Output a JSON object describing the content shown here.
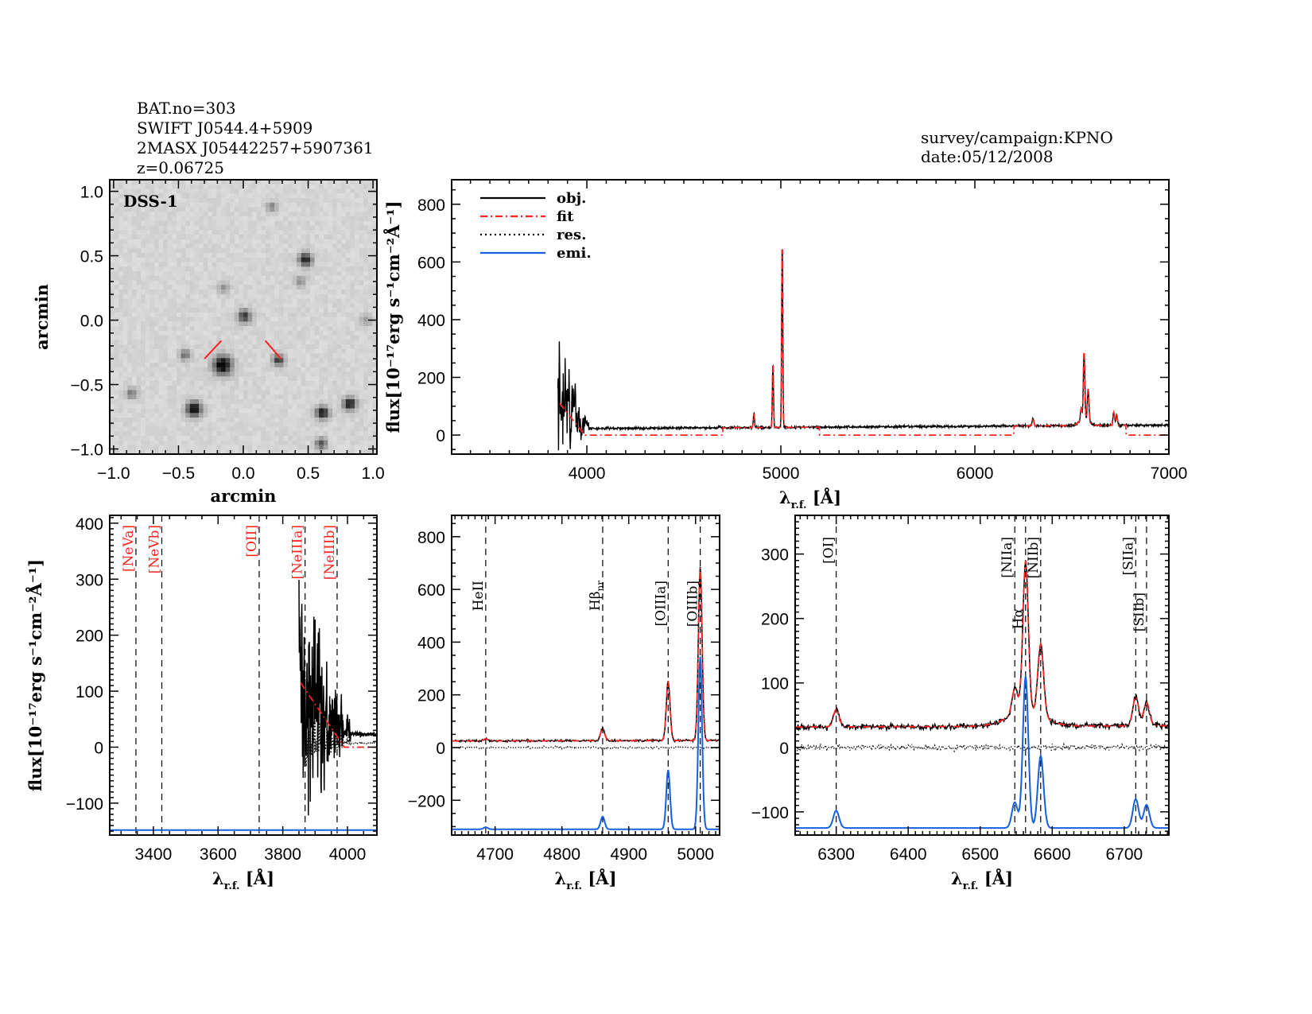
{
  "header": {
    "left_lines": [
      "BAT.no=303",
      "SWIFT J0544.4+5909",
      "2MASX J05442257+5907361",
      "z=0.06725"
    ],
    "right_lines": [
      "survey/campaign:KPNO",
      "date:05/12/2008"
    ]
  },
  "colors": {
    "obj": "#000000",
    "fit": "#ff2020",
    "res": "#000000",
    "emi": "#1560e0",
    "red_label": "#ff2020"
  },
  "chart_data": [
    {
      "type": "image",
      "id": "dss",
      "inset_label": "DSS-1",
      "xlabel": "arcmin",
      "ylabel": "arcmin",
      "xlim": [
        -1.03,
        1.03
      ],
      "ylim": [
        -1.04,
        1.09
      ],
      "xticks": [
        "-1.0",
        "-0.5",
        "0.0",
        "0.5",
        "1.0"
      ],
      "yticks": [
        "-1.0",
        "-0.5",
        "0.0",
        "0.5",
        "1.0"
      ],
      "sources": [
        {
          "x": -0.16,
          "y": -0.35,
          "b": 1.0,
          "r": 0.05
        },
        {
          "x": 0.01,
          "y": 0.03,
          "b": 0.7,
          "r": 0.035
        },
        {
          "x": 0.48,
          "y": 0.47,
          "b": 0.85,
          "r": 0.035
        },
        {
          "x": 0.27,
          "y": -0.31,
          "b": 0.7,
          "r": 0.03
        },
        {
          "x": -0.38,
          "y": -0.69,
          "b": 0.95,
          "r": 0.04
        },
        {
          "x": 0.61,
          "y": -0.72,
          "b": 0.85,
          "r": 0.035
        },
        {
          "x": 0.82,
          "y": -0.65,
          "b": 0.85,
          "r": 0.035
        },
        {
          "x": 0.6,
          "y": -0.96,
          "b": 0.6,
          "r": 0.03
        },
        {
          "x": -0.45,
          "y": -0.27,
          "b": 0.45,
          "r": 0.03
        },
        {
          "x": -0.86,
          "y": -0.57,
          "b": 0.4,
          "r": 0.03
        },
        {
          "x": 0.22,
          "y": 0.88,
          "b": 0.35,
          "r": 0.03
        },
        {
          "x": 0.44,
          "y": 0.3,
          "b": 0.35,
          "r": 0.03
        },
        {
          "x": -0.15,
          "y": 0.25,
          "b": 0.3,
          "r": 0.03
        },
        {
          "x": 0.95,
          "y": 0.0,
          "b": 0.25,
          "r": 0.03
        }
      ],
      "markers": [
        {
          "x1": -0.3,
          "y1": -0.3,
          "x2": -0.17,
          "y2": -0.16
        },
        {
          "x1": 0.17,
          "y1": -0.16,
          "x2": 0.29,
          "y2": -0.3
        }
      ]
    },
    {
      "type": "line",
      "id": "full",
      "xlabel": "λ",
      "xlabel_sub": "r.f.",
      "xlabel_unit": " [Å]",
      "ylabel": "flux[10⁻¹⁷erg s⁻¹cm⁻²Å⁻¹]",
      "xlim": [
        3303,
        7000
      ],
      "ylim": [
        -66,
        885
      ],
      "xticks": [
        4000,
        5000,
        6000,
        7000
      ],
      "yticks": [
        0,
        200,
        400,
        600,
        800
      ],
      "legend": {
        "position": "top-left",
        "entries": [
          "obj.",
          "fit",
          "res.",
          "emi."
        ]
      }
    },
    {
      "type": "line",
      "id": "neon",
      "xlabel": "λ",
      "xlabel_sub": "r.f.",
      "xlabel_unit": " [Å]",
      "ylabel": "flux[10⁻¹⁷erg s⁻¹cm⁻²Å⁻¹]",
      "xlim": [
        3265,
        4091
      ],
      "ylim": [
        -157,
        414
      ],
      "xticks": [
        3400,
        3600,
        3800,
        4000
      ],
      "yticks": [
        -100,
        0,
        100,
        200,
        300,
        400
      ],
      "emi_baseline": -148,
      "line_markers": [
        {
          "label": "[NeVa]",
          "wavelength": 3346,
          "color": "red"
        },
        {
          "label": "[NeVb]",
          "wavelength": 3426,
          "color": "red"
        },
        {
          "label": "[OII]",
          "wavelength": 3727,
          "color": "red"
        },
        {
          "label": "[NeIIIa]",
          "wavelength": 3869,
          "color": "red"
        },
        {
          "label": "[NeIIIb]",
          "wavelength": 3968,
          "color": "red"
        }
      ]
    },
    {
      "type": "line",
      "id": "hbeta",
      "xlabel": "λ",
      "xlabel_sub": "r.f.",
      "xlabel_unit": " [Å]",
      "xlim": [
        4635,
        5036
      ],
      "ylim": [
        -332,
        881
      ],
      "xticks": [
        4700,
        4800,
        4900,
        5000
      ],
      "yticks": [
        -200,
        0,
        200,
        400,
        600,
        800
      ],
      "emi_baseline": -310,
      "line_markers": [
        {
          "label": "HeII",
          "wavelength": 4686,
          "color": "black"
        },
        {
          "label": "Hβ",
          "sub": "nr",
          "wavelength": 4861,
          "color": "black"
        },
        {
          "label": "[OIIIa]",
          "wavelength": 4959,
          "color": "black"
        },
        {
          "label": "[OIIIb]",
          "wavelength": 5007,
          "color": "black"
        }
      ]
    },
    {
      "type": "line",
      "id": "halpha",
      "xlabel": "λ",
      "xlabel_sub": "r.f.",
      "xlabel_unit": " [Å]",
      "xlim": [
        6243,
        6762
      ],
      "ylim": [
        -136,
        360
      ],
      "xticks": [
        6300,
        6400,
        6500,
        6600,
        6700
      ],
      "yticks": [
        -100,
        0,
        100,
        200,
        300
      ],
      "emi_baseline": -125,
      "line_markers": [
        {
          "label": "[OI]",
          "wavelength": 6300,
          "color": "black"
        },
        {
          "label": "[NIIa]",
          "wavelength": 6548,
          "color": "black"
        },
        {
          "label": "Hα",
          "wavelength": 6563,
          "color": "black"
        },
        {
          "label": "[NIIb]",
          "wavelength": 6584,
          "color": "black"
        },
        {
          "label": "[SIIa]",
          "wavelength": 6716,
          "color": "black"
        },
        {
          "label": "[SIIb]",
          "wavelength": 6731,
          "color": "black"
        }
      ]
    }
  ],
  "spectrum_model": {
    "continuum": {
      "at_4600": 25,
      "slope_per_A": 0.004
    },
    "emission_lines": [
      {
        "name": "HeII",
        "wavelength": 4686,
        "amplitude": 8,
        "sigma_A": 3
      },
      {
        "name": "Hβ",
        "wavelength": 4861,
        "amplitude": 48,
        "sigma_A": 3
      },
      {
        "name": "[OIIIa]",
        "wavelength": 4959,
        "amplitude": 225,
        "sigma_A": 2.8
      },
      {
        "name": "[OIIIb]",
        "wavelength": 5007,
        "amplitude": 655,
        "sigma_A": 2.8
      },
      {
        "name": "[OI]",
        "wavelength": 6300,
        "amplitude": 27,
        "sigma_A": 4
      },
      {
        "name": "[NIIa]",
        "wavelength": 6548,
        "amplitude": 40,
        "sigma_A": 4
      },
      {
        "name": "Hα",
        "wavelength": 6563,
        "amplitude": 235,
        "sigma_A": 3.8
      },
      {
        "name": "[NIIb]",
        "wavelength": 6584,
        "amplitude": 112,
        "sigma_A": 4
      },
      {
        "name": "[SIIa]",
        "wavelength": 6716,
        "amplitude": 45,
        "sigma_A": 4
      },
      {
        "name": "[SIIb]",
        "wavelength": 6731,
        "amplitude": 36,
        "sigma_A": 4
      }
    ],
    "broad_halpha": {
      "wavelength": 6563,
      "amplitude": 22,
      "sigma_A": 25
    }
  }
}
